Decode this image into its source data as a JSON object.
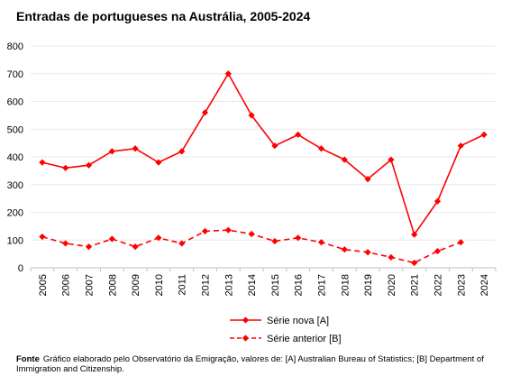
{
  "chart_data": {
    "type": "line",
    "title": "Entradas de portugueses na Austrália, 2005-2024",
    "xlabel": "",
    "ylabel": "",
    "x": [
      "2005",
      "2006",
      "2007",
      "2008",
      "2009",
      "2010",
      "2011",
      "2012",
      "2013",
      "2014",
      "2015",
      "2016",
      "2017",
      "2018",
      "2019",
      "2020",
      "2021",
      "2022",
      "2023",
      "2024"
    ],
    "ylim": [
      0,
      800
    ],
    "yticks": [
      0,
      100,
      200,
      300,
      400,
      500,
      600,
      700,
      800
    ],
    "grid": "horizontal",
    "legend_position": "bottom",
    "series": [
      {
        "name": "Série nova [A]",
        "style": "solid",
        "color": "#ff0000",
        "values": [
          380,
          360,
          370,
          420,
          430,
          380,
          420,
          560,
          700,
          550,
          440,
          480,
          430,
          390,
          320,
          390,
          120,
          240,
          440,
          480
        ]
      },
      {
        "name": "Série anterior [B]",
        "style": "dashed",
        "color": "#ff0000",
        "values": [
          112,
          88,
          76,
          104,
          76,
          108,
          88,
          132,
          136,
          122,
          96,
          108,
          92,
          66,
          56,
          38,
          18,
          60,
          92,
          null
        ]
      }
    ]
  },
  "source": {
    "label": "Fonte",
    "text": "Gráfico elaborado pelo Observatório da Emigração, valores de: [A]  Australian Bureau of Statistics; [B] Department of Immigration and Citizenship."
  }
}
